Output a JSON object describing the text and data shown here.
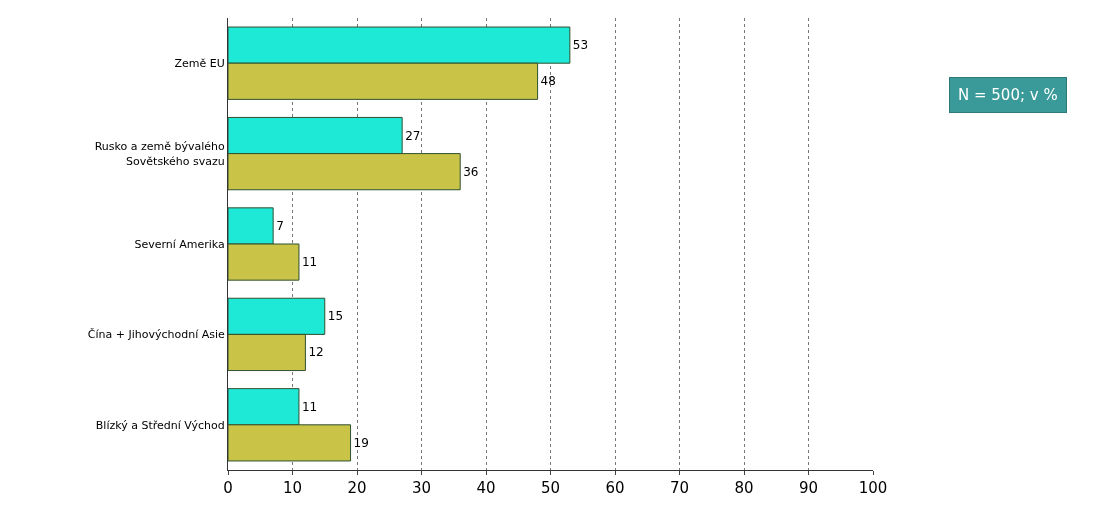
{
  "chart_data": {
    "type": "bar",
    "orientation": "horizontal",
    "categories": [
      "Země EU",
      "Rusko a země bývalého Sovětského svazu",
      "Severní Amerika",
      "Čína + Jihovýchodní Asie",
      "Blízký a Střední Východ"
    ],
    "series": [
      {
        "color": "#1ee8d6",
        "values": [
          53,
          27,
          7,
          15,
          11
        ]
      },
      {
        "color": "#c9c448",
        "values": [
          48,
          36,
          11,
          12,
          19
        ]
      }
    ],
    "xlim": [
      0,
      100
    ],
    "xticks": [
      0,
      10,
      20,
      30,
      40,
      50,
      60,
      70,
      80,
      90,
      100
    ],
    "grid": "x",
    "data_labels": true,
    "annotations": [
      "N = 500; v %"
    ]
  }
}
